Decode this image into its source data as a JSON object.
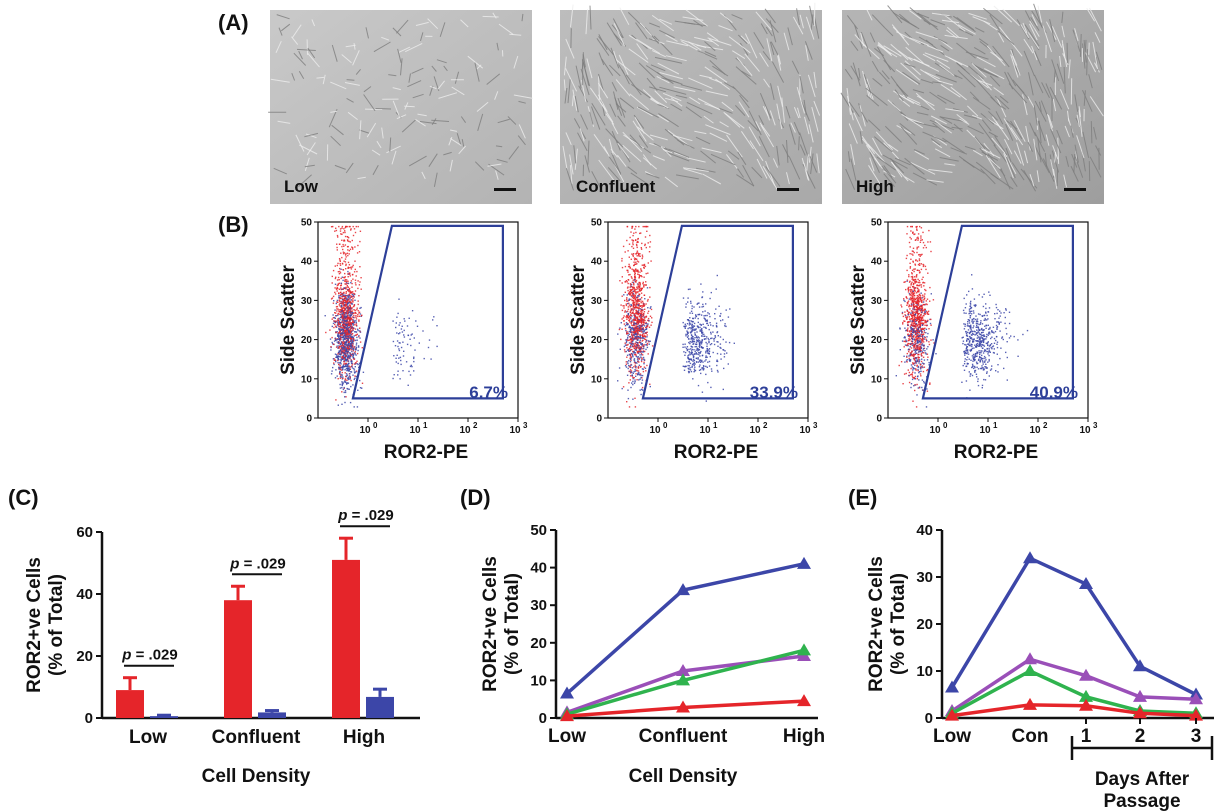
{
  "figure": {
    "panel_labels": [
      "(A)",
      "(B)",
      "(C)",
      "(D)",
      "(E)"
    ],
    "micrographs": [
      {
        "label": "Low",
        "density": 0.35
      },
      {
        "label": "Confluent",
        "density": 0.8
      },
      {
        "label": "High",
        "density": 1.0
      }
    ],
    "colors": {
      "red": "#e5252a",
      "blue": "#3c46a8",
      "green": "#2fb34e",
      "purple": "#9a4fb8",
      "gate": "#2d3f99"
    },
    "icons": [
      "scale-bar-icon",
      "gate-polygon-icon",
      "triangle-marker-icon"
    ]
  },
  "chart_data": [
    {
      "type": "scatter",
      "panel": "(B)",
      "charts": [
        {
          "gate_percent": "6.7%",
          "positive_fraction": 0.067
        },
        {
          "gate_percent": "33.9%",
          "positive_fraction": 0.339
        },
        {
          "gate_percent": "40.9%",
          "positive_fraction": 0.409
        }
      ],
      "xlabel": "ROR2-PE",
      "ylabel": "Side Scatter",
      "x_scale": "log",
      "xlim": [
        0.1,
        1000
      ],
      "x_ticks": [
        "10",
        "10",
        "10",
        "10"
      ],
      "x_tick_exponents": [
        "0",
        "1",
        "2",
        "3"
      ],
      "ylim": [
        0,
        50
      ],
      "y_ticks": [
        "0",
        "10",
        "20",
        "30",
        "40",
        "50"
      ],
      "series_colors": [
        "#e5252a",
        "#3c46a8"
      ],
      "gate": {
        "x": [
          0.5,
          3,
          500,
          500
        ],
        "y": [
          5,
          49,
          49,
          5
        ]
      }
    },
    {
      "type": "bar",
      "panel": "(C)",
      "categories": [
        "Low",
        "Confluent",
        "High"
      ],
      "series": [
        {
          "values": [
            9,
            38,
            51
          ],
          "errors": [
            4,
            4.5,
            7
          ],
          "color": "#e5252a"
        },
        {
          "values": [
            0.6,
            1.8,
            6.8
          ],
          "errors": [
            0.3,
            0.6,
            2.5
          ],
          "color": "#3c46a8"
        }
      ],
      "annotations": [
        "p = .029",
        "p = .029",
        "p = .029"
      ],
      "p_prefix": "p",
      "p_value": "= .029",
      "xlabel": "Cell Density",
      "ylabel": "ROR2+ve Cells",
      "ylabel2": "(% of Total)",
      "ylim": [
        0,
        60
      ],
      "y_ticks": [
        "0",
        "20",
        "40",
        "60"
      ]
    },
    {
      "type": "line",
      "panel": "(D)",
      "categories": [
        "Low",
        "Confluent",
        "High"
      ],
      "series": [
        {
          "values": [
            6.5,
            34,
            41
          ],
          "color": "#3c46a8"
        },
        {
          "values": [
            1.5,
            12.5,
            16.5
          ],
          "color": "#9a4fb8"
        },
        {
          "values": [
            1,
            10,
            18
          ],
          "color": "#2fb34e"
        },
        {
          "values": [
            0.5,
            2.8,
            4.5
          ],
          "color": "#e5252a"
        }
      ],
      "xlabel": "Cell Density",
      "ylabel": "ROR2+ve Cells",
      "ylabel2": "(% of Total)",
      "ylim": [
        0,
        50
      ],
      "y_ticks": [
        "0",
        "10",
        "20",
        "30",
        "40",
        "50"
      ]
    },
    {
      "type": "line",
      "panel": "(E)",
      "categories": [
        "Low",
        "Con",
        "1",
        "2",
        "3"
      ],
      "series": [
        {
          "values": [
            6.5,
            34,
            28.5,
            11,
            5
          ],
          "color": "#3c46a8"
        },
        {
          "values": [
            1.5,
            12.5,
            9,
            4.5,
            4
          ],
          "color": "#9a4fb8"
        },
        {
          "values": [
            1,
            10,
            4.5,
            1.5,
            1
          ],
          "color": "#2fb34e"
        },
        {
          "values": [
            0.5,
            2.8,
            2.6,
            1,
            0.5
          ],
          "color": "#e5252a"
        }
      ],
      "bracket_label_1": "Days After",
      "bracket_label_2": "Passage",
      "ylabel": "ROR2+ve Cells",
      "ylabel2": "(% of Total)",
      "ylim": [
        0,
        40
      ],
      "y_ticks": [
        "0",
        "10",
        "20",
        "30",
        "40"
      ]
    }
  ]
}
